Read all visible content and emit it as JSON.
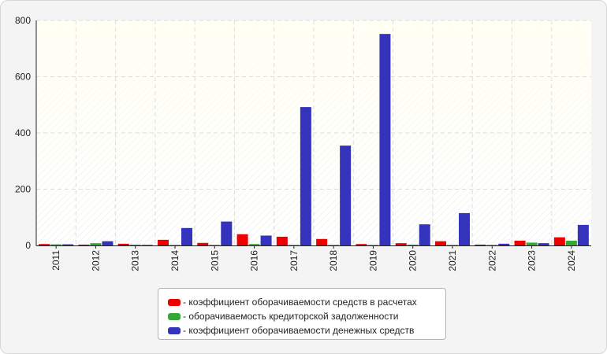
{
  "chart_data": {
    "type": "bar",
    "categories": [
      "2011",
      "2012",
      "2013",
      "2014",
      "2015",
      "2016",
      "2017",
      "2018",
      "2019",
      "2020",
      "2021",
      "2022",
      "2023",
      "2024"
    ],
    "series": [
      {
        "name": "коэффициент оборачиваемости средств в расчетах",
        "color": "#ee0000",
        "values": [
          5,
          3,
          6,
          20,
          9,
          40,
          31,
          23,
          5,
          8,
          15,
          3,
          17,
          29
        ]
      },
      {
        "name": "оборачиваемость кредиторской задолженности",
        "color": "#33aa33",
        "values": [
          4,
          8,
          3,
          2,
          2,
          5,
          2,
          2,
          2,
          3,
          2,
          2,
          10,
          17
        ]
      },
      {
        "name": "коэффициент оборачиваемости денежных средств",
        "color": "#3333bb",
        "values": [
          4,
          15,
          2,
          62,
          85,
          35,
          492,
          355,
          752,
          75,
          115,
          6,
          8,
          73
        ]
      }
    ],
    "ylim": [
      0,
      800
    ],
    "yticks": [
      "0",
      "200",
      "400",
      "600",
      "800"
    ],
    "grid": true,
    "legend_position": "bottom"
  }
}
